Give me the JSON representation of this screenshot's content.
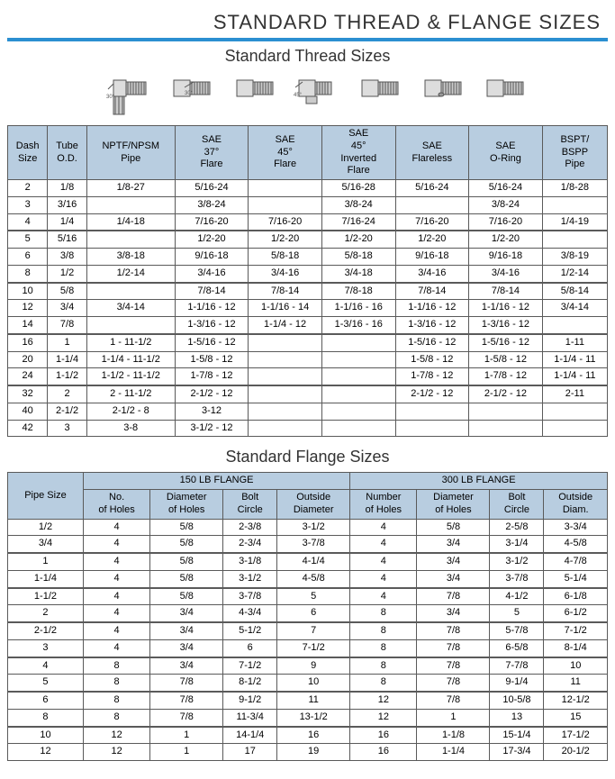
{
  "page_title": "STANDARD THREAD & FLANGE SIZES",
  "thread_section_title": "Standard Thread Sizes",
  "flange_section_title": "Standard Flange Sizes",
  "colors": {
    "accent_bar": "#2b8fd1",
    "header_bg": "#b8cde0",
    "border": "#5a5a5a",
    "background": "#ffffff",
    "text": "#333333"
  },
  "thread_table": {
    "columns": [
      "Dash Size",
      "Tube O.D.",
      "NPTF/NPSM Pipe",
      "SAE 37° Flare",
      "SAE 45° Flare",
      "SAE 45° Inverted Flare",
      "SAE Flareless",
      "SAE O-Ring",
      "BSPT/ BSPP Pipe"
    ],
    "groups": [
      [
        [
          "2",
          "1/8",
          "1/8-27",
          "5/16-24",
          "",
          "5/16-28",
          "5/16-24",
          "5/16-24",
          "1/8-28"
        ],
        [
          "3",
          "3/16",
          "",
          "3/8-24",
          "",
          "3/8-24",
          "",
          "3/8-24",
          ""
        ],
        [
          "4",
          "1/4",
          "1/4-18",
          "7/16-20",
          "7/16-20",
          "7/16-24",
          "7/16-20",
          "7/16-20",
          "1/4-19"
        ]
      ],
      [
        [
          "5",
          "5/16",
          "",
          "1/2-20",
          "1/2-20",
          "1/2-20",
          "1/2-20",
          "1/2-20",
          ""
        ],
        [
          "6",
          "3/8",
          "3/8-18",
          "9/16-18",
          "5/8-18",
          "5/8-18",
          "9/16-18",
          "9/16-18",
          "3/8-19"
        ],
        [
          "8",
          "1/2",
          "1/2-14",
          "3/4-16",
          "3/4-16",
          "3/4-18",
          "3/4-16",
          "3/4-16",
          "1/2-14"
        ]
      ],
      [
        [
          "10",
          "5/8",
          "",
          "7/8-14",
          "7/8-14",
          "7/8-18",
          "7/8-14",
          "7/8-14",
          "5/8-14"
        ],
        [
          "12",
          "3/4",
          "3/4-14",
          "1-1/16 - 12",
          "1-1/16 - 14",
          "1-1/16 - 16",
          "1-1/16 - 12",
          "1-1/16 - 12",
          "3/4-14"
        ],
        [
          "14",
          "7/8",
          "",
          "1-3/16 - 12",
          "1-1/4 - 12",
          "1-3/16 - 16",
          "1-3/16 - 12",
          "1-3/16 - 12",
          ""
        ]
      ],
      [
        [
          "16",
          "1",
          "1 - 11-1/2",
          "1-5/16 - 12",
          "",
          "",
          "1-5/16 - 12",
          "1-5/16 - 12",
          "1-11"
        ],
        [
          "20",
          "1-1/4",
          "1-1/4 - 11-1/2",
          "1-5/8 - 12",
          "",
          "",
          "1-5/8 - 12",
          "1-5/8 - 12",
          "1-1/4 - 11"
        ],
        [
          "24",
          "1-1/2",
          "1-1/2 - 11-1/2",
          "1-7/8 - 12",
          "",
          "",
          "1-7/8 - 12",
          "1-7/8 - 12",
          "1-1/4 - 11"
        ]
      ],
      [
        [
          "32",
          "2",
          "2 - 11-1/2",
          "2-1/2 - 12",
          "",
          "",
          "2-1/2 - 12",
          "2-1/2 - 12",
          "2-11"
        ],
        [
          "40",
          "2-1/2",
          "2-1/2 - 8",
          "3-12",
          "",
          "",
          "",
          "",
          ""
        ],
        [
          "42",
          "3",
          "3-8",
          "3-1/2 - 12",
          "",
          "",
          "",
          "",
          ""
        ]
      ]
    ]
  },
  "flange_table": {
    "super_headers": [
      "150 LB FLANGE",
      "300 LB FLANGE"
    ],
    "row_header": "Pipe Size",
    "columns_150": [
      "No. of Holes",
      "Diameter of Holes",
      "Bolt Circle",
      "Outside Diameter"
    ],
    "columns_300": [
      "Number of Holes",
      "Diameter of Holes",
      "Bolt Circle",
      "Outside Diam."
    ],
    "groups": [
      [
        [
          "1/2",
          "4",
          "5/8",
          "2-3/8",
          "3-1/2",
          "4",
          "5/8",
          "2-5/8",
          "3-3/4"
        ],
        [
          "3/4",
          "4",
          "5/8",
          "2-3/4",
          "3-7/8",
          "4",
          "3/4",
          "3-1/4",
          "4-5/8"
        ]
      ],
      [
        [
          "1",
          "4",
          "5/8",
          "3-1/8",
          "4-1/4",
          "4",
          "3/4",
          "3-1/2",
          "4-7/8"
        ],
        [
          "1-1/4",
          "4",
          "5/8",
          "3-1/2",
          "4-5/8",
          "4",
          "3/4",
          "3-7/8",
          "5-1/4"
        ]
      ],
      [
        [
          "1-1/2",
          "4",
          "5/8",
          "3-7/8",
          "5",
          "4",
          "7/8",
          "4-1/2",
          "6-1/8"
        ],
        [
          "2",
          "4",
          "3/4",
          "4-3/4",
          "6",
          "8",
          "3/4",
          "5",
          "6-1/2"
        ]
      ],
      [
        [
          "2-1/2",
          "4",
          "3/4",
          "5-1/2",
          "7",
          "8",
          "7/8",
          "5-7/8",
          "7-1/2"
        ],
        [
          "3",
          "4",
          "3/4",
          "6",
          "7-1/2",
          "8",
          "7/8",
          "6-5/8",
          "8-1/4"
        ]
      ],
      [
        [
          "4",
          "8",
          "3/4",
          "7-1/2",
          "9",
          "8",
          "7/8",
          "7-7/8",
          "10"
        ],
        [
          "5",
          "8",
          "7/8",
          "8-1/2",
          "10",
          "8",
          "7/8",
          "9-1/4",
          "11"
        ]
      ],
      [
        [
          "6",
          "8",
          "7/8",
          "9-1/2",
          "11",
          "12",
          "7/8",
          "10-5/8",
          "12-1/2"
        ],
        [
          "8",
          "8",
          "7/8",
          "11-3/4",
          "13-1/2",
          "12",
          "1",
          "13",
          "15"
        ]
      ],
      [
        [
          "10",
          "12",
          "1",
          "14-1/4",
          "16",
          "16",
          "1-1/8",
          "15-1/4",
          "17-1/2"
        ],
        [
          "12",
          "12",
          "1",
          "17",
          "19",
          "16",
          "1-1/4",
          "17-3/4",
          "20-1/2"
        ]
      ]
    ]
  }
}
